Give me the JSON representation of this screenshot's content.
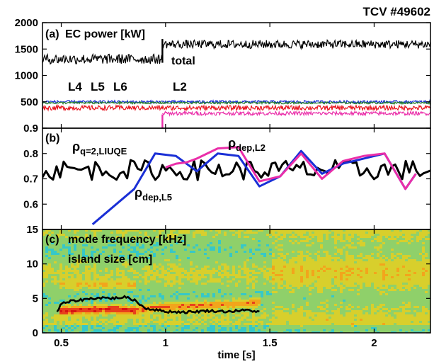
{
  "shot_label": "TCV #49602",
  "chart_data": [
    {
      "id": "a",
      "type": "line",
      "panel_label": "(a)",
      "title": "EC power [kW]",
      "xlabel": "",
      "ylabel": "",
      "xlim": [
        0.41,
        2.27
      ],
      "ylim": [
        0,
        2000
      ],
      "y_ticks": [
        0,
        500,
        1000,
        1500,
        2000
      ],
      "y_tick_labels": [
        "",
        "500",
        "1000",
        "1500",
        "2000"
      ],
      "grid": false,
      "annotations": [
        "total",
        "L4",
        "L5",
        "L6",
        "L2"
      ],
      "annotation_colors": [
        "#000000",
        "#e8141e",
        "#1a2fd6",
        "#1f7a2a",
        "#ea2ea9"
      ],
      "series": [
        {
          "name": "total",
          "color": "#000000",
          "segments": [
            {
              "x": [
                0.41,
                0.985
              ],
              "y": [
                1310,
                1310
              ],
              "noise": 95
            },
            {
              "x": [
                0.985,
                0.985
              ],
              "y": [
                1240,
                1690
              ]
            },
            {
              "x": [
                0.985,
                2.27
              ],
              "y": [
                1590,
                1590
              ],
              "noise": 80
            }
          ]
        },
        {
          "name": "L5",
          "color": "#1a2fd6",
          "segments": [
            {
              "x": [
                0.41,
                2.27
              ],
              "y": [
                500,
                500
              ],
              "noise": 25
            }
          ]
        },
        {
          "name": "L6",
          "color": "#1f7a2a",
          "segments": [
            {
              "x": [
                0.41,
                2.27
              ],
              "y": [
                480,
                480
              ],
              "noise": 20
            }
          ]
        },
        {
          "name": "L4",
          "color": "#e8141e",
          "segments": [
            {
              "x": [
                0.41,
                2.27
              ],
              "y": [
                385,
                385
              ],
              "noise": 45
            }
          ]
        },
        {
          "name": "L2",
          "color": "#ea2ea9",
          "segments": [
            {
              "x": [
                0.985,
                0.985
              ],
              "y": [
                0,
                260
              ]
            },
            {
              "x": [
                0.985,
                2.27
              ],
              "y": [
                280,
                280
              ],
              "noise": 35
            }
          ]
        }
      ]
    },
    {
      "id": "b",
      "type": "line",
      "panel_label": "(b)",
      "xlabel": "",
      "ylabel": "",
      "xlim": [
        0.41,
        2.27
      ],
      "ylim": [
        0.5,
        0.9
      ],
      "y_ticks": [
        0.5,
        0.6,
        0.7,
        0.8,
        0.9
      ],
      "y_tick_labels": [
        "",
        "0.6",
        "0.7",
        "0.8",
        "0.9"
      ],
      "grid": false,
      "annotations": [
        {
          "main": "ρ",
          "sub": "q=2,LIUQE",
          "color": "#000000"
        },
        {
          "main": "ρ",
          "sub": "dep,L2",
          "color": "#ea2ea9"
        },
        {
          "main": "ρ",
          "sub": "dep,L5",
          "color": "#1a2fd6"
        }
      ],
      "series": [
        {
          "name": "ρq=2,LIUQE",
          "color": "#000000",
          "style": "noisy",
          "x": [
            0.41,
            2.27
          ],
          "y": [
            0.735,
            0.735
          ],
          "noise": 0.04
        },
        {
          "name": "ρdep,L5",
          "color": "#1a2fd6",
          "x": [
            0.65,
            0.85,
            0.95,
            1.05,
            1.15,
            1.25,
            1.35,
            1.45,
            1.55,
            1.65,
            1.75,
            1.85,
            1.95,
            2.05,
            2.15,
            2.2
          ],
          "y": [
            0.52,
            0.66,
            0.8,
            0.79,
            0.73,
            0.8,
            0.79,
            0.67,
            0.71,
            0.81,
            0.72,
            0.76,
            0.78,
            0.8,
            0.66,
            0.72
          ]
        },
        {
          "name": "ρdep,L2",
          "color": "#ea2ea9",
          "x": [
            1.0,
            1.05,
            1.1,
            1.15,
            1.25,
            1.35,
            1.45,
            1.55,
            1.65,
            1.75,
            1.85,
            1.95,
            2.05,
            2.15,
            2.2
          ],
          "y": [
            0.745,
            0.76,
            0.765,
            0.78,
            0.82,
            0.825,
            0.69,
            0.71,
            0.8,
            0.7,
            0.77,
            0.79,
            0.8,
            0.66,
            0.72
          ]
        }
      ]
    },
    {
      "id": "c",
      "type": "heatmap",
      "panel_label": "(c)",
      "xlabel": "time [s]",
      "ylabel": "",
      "xlim": [
        0.41,
        2.27
      ],
      "ylim": [
        0,
        15
      ],
      "x_ticks": [
        0.5,
        1,
        1.5,
        2
      ],
      "x_tick_labels": [
        "0.5",
        "1",
        "1.5",
        "2"
      ],
      "y_ticks": [
        0,
        5,
        10,
        15
      ],
      "y_tick_labels": [
        "0",
        "5",
        "10",
        "15"
      ],
      "grid": false,
      "annotations": [
        {
          "text": "mode frequency [kHz]",
          "color": "#f07b1f"
        },
        {
          "text": "island size [cm]",
          "color": "#000000"
        }
      ],
      "colors": [
        "#36c8c8",
        "#8fd06a",
        "#d8cf2c",
        "#f2a51c",
        "#e8401c",
        "#d81212"
      ],
      "mode_frequency": {
        "x": [
          0.48,
          0.6,
          0.75,
          0.85,
          0.95,
          1.1,
          1.3,
          1.45
        ],
        "y": [
          3.3,
          3.5,
          3.6,
          3.4,
          3.9,
          4.1,
          4.3,
          4.6
        ]
      },
      "series": [
        {
          "name": "island size",
          "color": "#000000",
          "x": [
            0.48,
            0.5,
            0.55,
            0.65,
            0.7,
            0.75,
            0.8,
            0.85,
            0.9,
            1.0,
            1.1,
            1.2,
            1.3,
            1.4,
            1.45
          ],
          "y": [
            3.0,
            4.2,
            4.6,
            5.0,
            5.1,
            5.0,
            5.2,
            4.8,
            3.6,
            3.1,
            3.0,
            3.2,
            3.1,
            3.3,
            3.0
          ]
        }
      ]
    }
  ]
}
